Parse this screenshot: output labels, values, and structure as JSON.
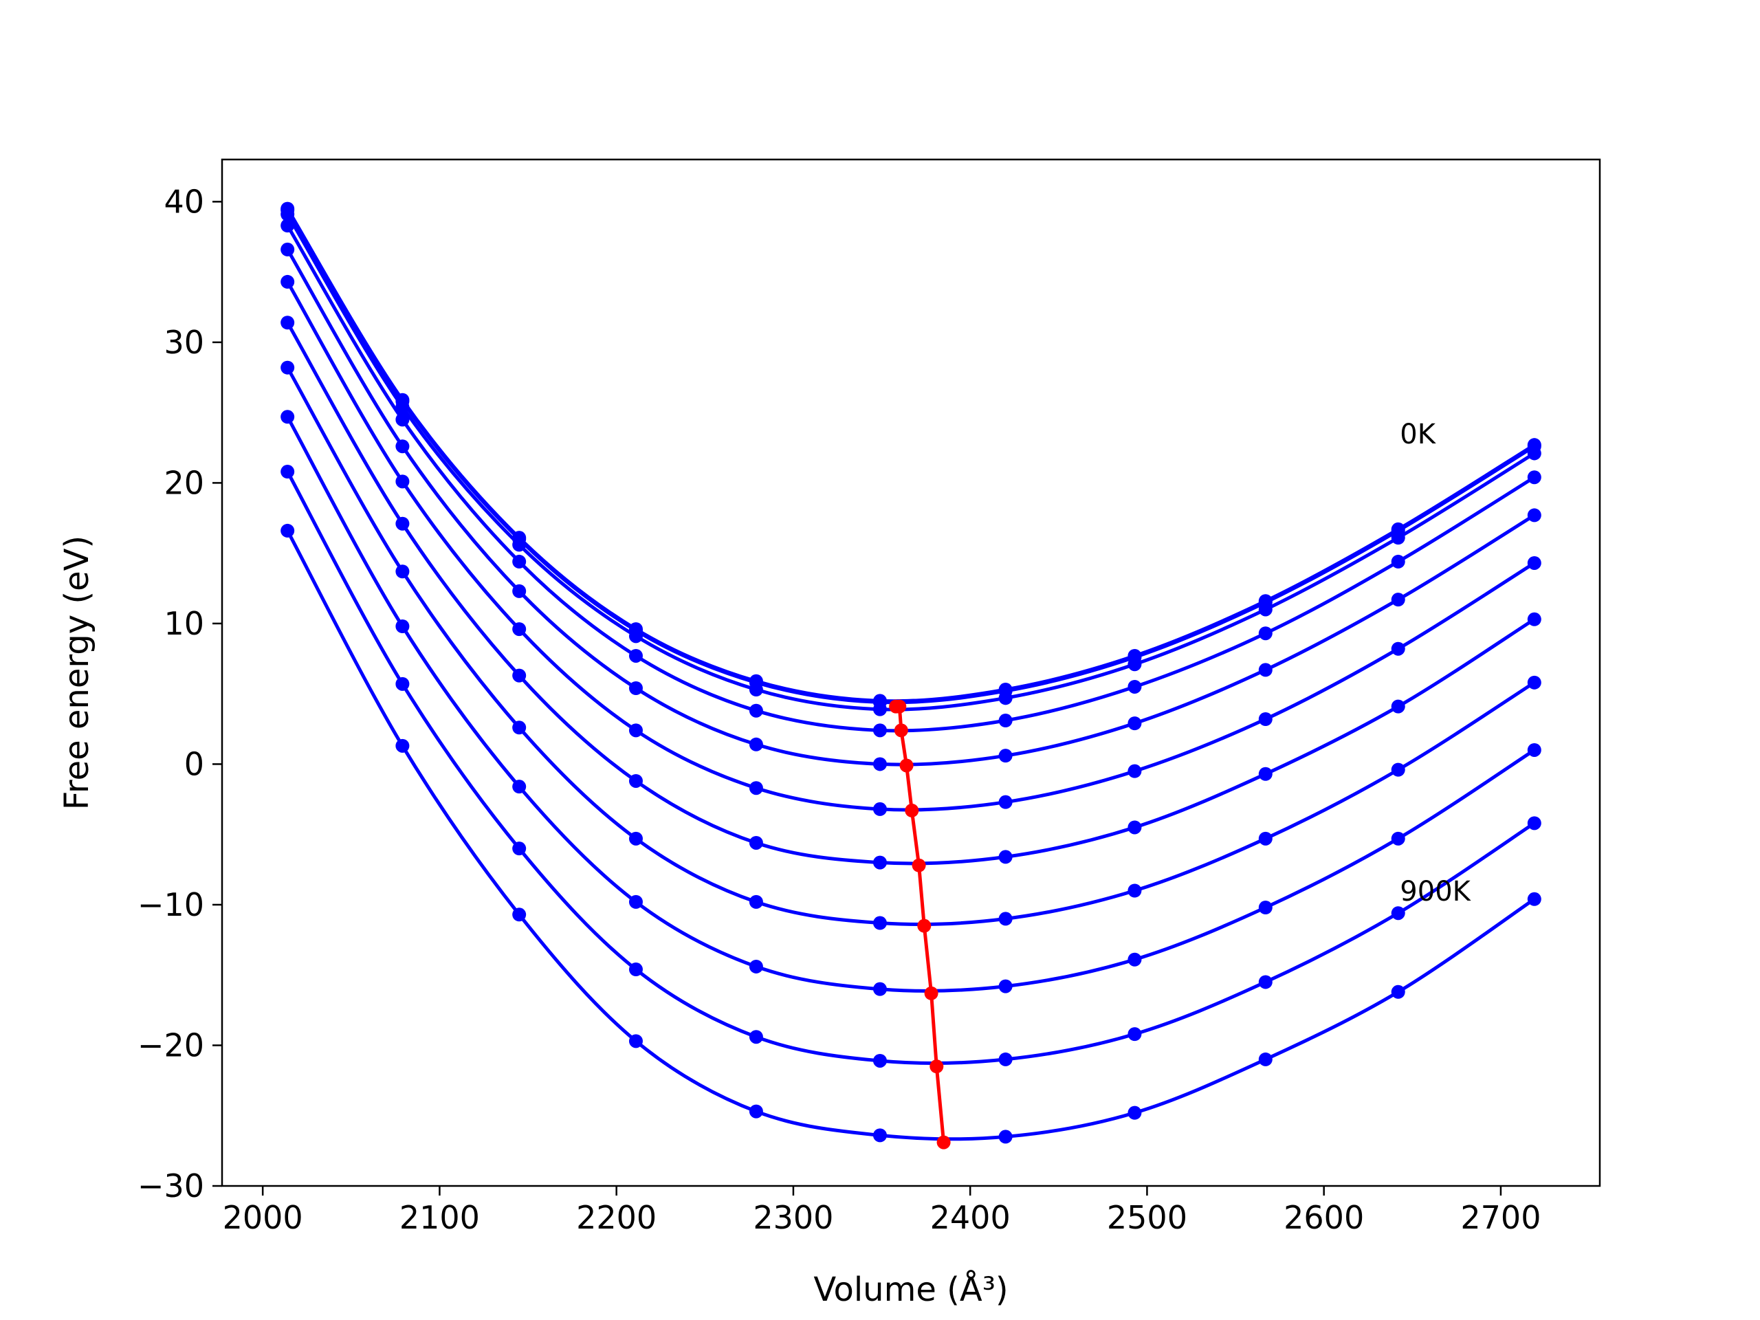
{
  "chart_data": {
    "type": "line",
    "xlabel": "Volume (Å³)",
    "ylabel": "Free energy (eV)",
    "xlim": [
      1977,
      2756
    ],
    "ylim": [
      -30,
      43
    ],
    "xticks": [
      2000,
      2100,
      2200,
      2300,
      2400,
      2500,
      2600,
      2700
    ],
    "yticks": [
      -30,
      -20,
      -10,
      0,
      10,
      20,
      30,
      40
    ],
    "grid": false,
    "legend": "none",
    "curve_color": "#0000ff",
    "min_line_color": "#ff0000",
    "x": [
      2014,
      2079,
      2145,
      2211,
      2279,
      2349,
      2420,
      2493,
      2567,
      2642,
      2719
    ],
    "series": [
      {
        "values": [
          39.5,
          25.9,
          16.1,
          9.6,
          5.9,
          4.5,
          5.3,
          7.7,
          11.6,
          16.7,
          22.7
        ]
      },
      {
        "values": [
          39.4,
          25.8,
          16.0,
          9.5,
          5.8,
          4.4,
          5.2,
          7.6,
          11.5,
          16.6,
          22.6
        ]
      },
      {
        "values": [
          39.1,
          25.4,
          15.6,
          9.1,
          5.3,
          3.9,
          4.7,
          7.1,
          11.0,
          16.1,
          22.1
        ]
      },
      {
        "values": [
          38.3,
          24.5,
          14.4,
          7.7,
          3.8,
          2.4,
          3.1,
          5.5,
          9.3,
          14.4,
          20.4
        ]
      },
      {
        "values": [
          36.6,
          22.6,
          12.3,
          5.4,
          1.4,
          0.0,
          0.6,
          2.9,
          6.7,
          11.7,
          17.7
        ]
      },
      {
        "values": [
          34.3,
          20.1,
          9.6,
          2.4,
          -1.7,
          -3.2,
          -2.7,
          -0.5,
          3.2,
          8.2,
          14.3
        ]
      },
      {
        "values": [
          31.4,
          17.1,
          6.3,
          -1.2,
          -5.6,
          -7.0,
          -6.6,
          -4.5,
          -0.7,
          4.1,
          10.3
        ]
      },
      {
        "values": [
          28.2,
          13.7,
          2.6,
          -5.3,
          -9.8,
          -11.3,
          -11.0,
          -9.0,
          -5.3,
          -0.4,
          5.8
        ]
      },
      {
        "values": [
          24.7,
          9.8,
          -1.6,
          -9.8,
          -14.4,
          -16.0,
          -15.8,
          -13.9,
          -10.2,
          -5.3,
          1.0
        ]
      },
      {
        "values": [
          20.8,
          5.7,
          -6.0,
          -14.6,
          -19.4,
          -21.1,
          -21.0,
          -19.2,
          -15.5,
          -10.6,
          -4.2
        ]
      },
      {
        "values": [
          16.6,
          1.3,
          -10.7,
          -19.7,
          -24.7,
          -26.4,
          -26.5,
          -24.8,
          -21.0,
          -16.2,
          -9.6
        ]
      }
    ],
    "minima": [
      {
        "x": 2358,
        "y": 4.1
      },
      {
        "x": 2360,
        "y": 4.1
      },
      {
        "x": 2361,
        "y": 2.4
      },
      {
        "x": 2364,
        "y": -0.1
      },
      {
        "x": 2367,
        "y": -3.3
      },
      {
        "x": 2371,
        "y": -7.2
      },
      {
        "x": 2374,
        "y": -11.5
      },
      {
        "x": 2378,
        "y": -16.3
      },
      {
        "x": 2381,
        "y": -21.5
      },
      {
        "x": 2385,
        "y": -26.9
      }
    ],
    "annotations": [
      {
        "text": "0K",
        "x": 2643,
        "y": 22.8
      },
      {
        "text": "900K",
        "x": 2643,
        "y": -9.7
      }
    ]
  }
}
